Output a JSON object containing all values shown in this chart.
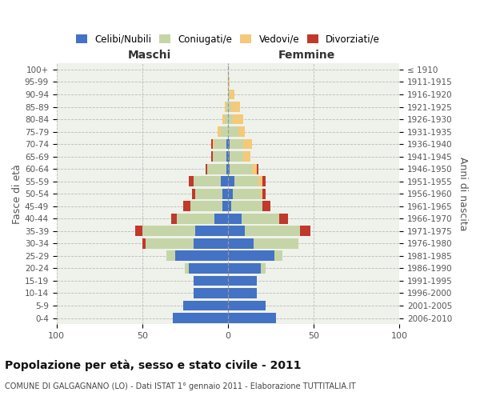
{
  "age_groups": [
    "0-4",
    "5-9",
    "10-14",
    "15-19",
    "20-24",
    "25-29",
    "30-34",
    "35-39",
    "40-44",
    "45-49",
    "50-54",
    "55-59",
    "60-64",
    "65-69",
    "70-74",
    "75-79",
    "80-84",
    "85-89",
    "90-94",
    "95-99",
    "100+"
  ],
  "birth_years": [
    "2006-2010",
    "2001-2005",
    "1996-2000",
    "1991-1995",
    "1986-1990",
    "1981-1985",
    "1976-1980",
    "1971-1975",
    "1966-1970",
    "1961-1965",
    "1956-1960",
    "1951-1955",
    "1946-1950",
    "1941-1945",
    "1936-1940",
    "1931-1935",
    "1926-1930",
    "1921-1925",
    "1916-1920",
    "1911-1915",
    "≤ 1910"
  ],
  "maschi": {
    "celibi": [
      32,
      26,
      20,
      20,
      23,
      31,
      20,
      19,
      8,
      3,
      3,
      4,
      1,
      1,
      1,
      0,
      0,
      0,
      0,
      0,
      0
    ],
    "coniugati": [
      0,
      0,
      0,
      0,
      2,
      5,
      28,
      31,
      22,
      19,
      16,
      16,
      11,
      8,
      7,
      4,
      2,
      1,
      0,
      0,
      0
    ],
    "vedovi": [
      0,
      0,
      0,
      0,
      0,
      0,
      0,
      0,
      0,
      0,
      0,
      0,
      0,
      0,
      1,
      2,
      1,
      1,
      0,
      0,
      0
    ],
    "divorziati": [
      0,
      0,
      0,
      0,
      0,
      0,
      2,
      4,
      3,
      4,
      2,
      3,
      1,
      1,
      1,
      0,
      0,
      0,
      0,
      0,
      0
    ]
  },
  "femmine": {
    "nubili": [
      28,
      22,
      17,
      17,
      19,
      27,
      15,
      10,
      8,
      2,
      3,
      4,
      1,
      1,
      1,
      0,
      0,
      0,
      0,
      0,
      0
    ],
    "coniugate": [
      0,
      0,
      0,
      0,
      3,
      5,
      26,
      32,
      22,
      18,
      16,
      14,
      13,
      8,
      8,
      6,
      3,
      2,
      1,
      0,
      0
    ],
    "vedove": [
      0,
      0,
      0,
      0,
      0,
      0,
      0,
      0,
      0,
      0,
      1,
      2,
      3,
      4,
      5,
      4,
      6,
      5,
      3,
      1,
      0
    ],
    "divorziate": [
      0,
      0,
      0,
      0,
      0,
      0,
      0,
      6,
      5,
      5,
      2,
      2,
      1,
      0,
      0,
      0,
      0,
      0,
      0,
      0,
      0
    ]
  },
  "colors": {
    "celibi_nubili": "#4472C4",
    "coniugati": "#C5D5A8",
    "vedovi": "#F5C97A",
    "divorziati": "#C0392B"
  },
  "title": "Popolazione per età, sesso e stato civile - 2011",
  "subtitle": "COMUNE DI GALGAGNANO (LO) - Dati ISTAT 1° gennaio 2011 - Elaborazione TUTTITALIA.IT",
  "label_maschi": "Maschi",
  "label_femmine": "Femmine",
  "ylabel_left": "Fasce di età",
  "ylabel_right": "Anni di nascita",
  "legend_labels": [
    "Celibi/Nubili",
    "Coniugati/e",
    "Vedovi/e",
    "Divorziati/e"
  ],
  "xlim": 100,
  "background_color": "#ffffff",
  "plot_bg": "#eef2ea"
}
